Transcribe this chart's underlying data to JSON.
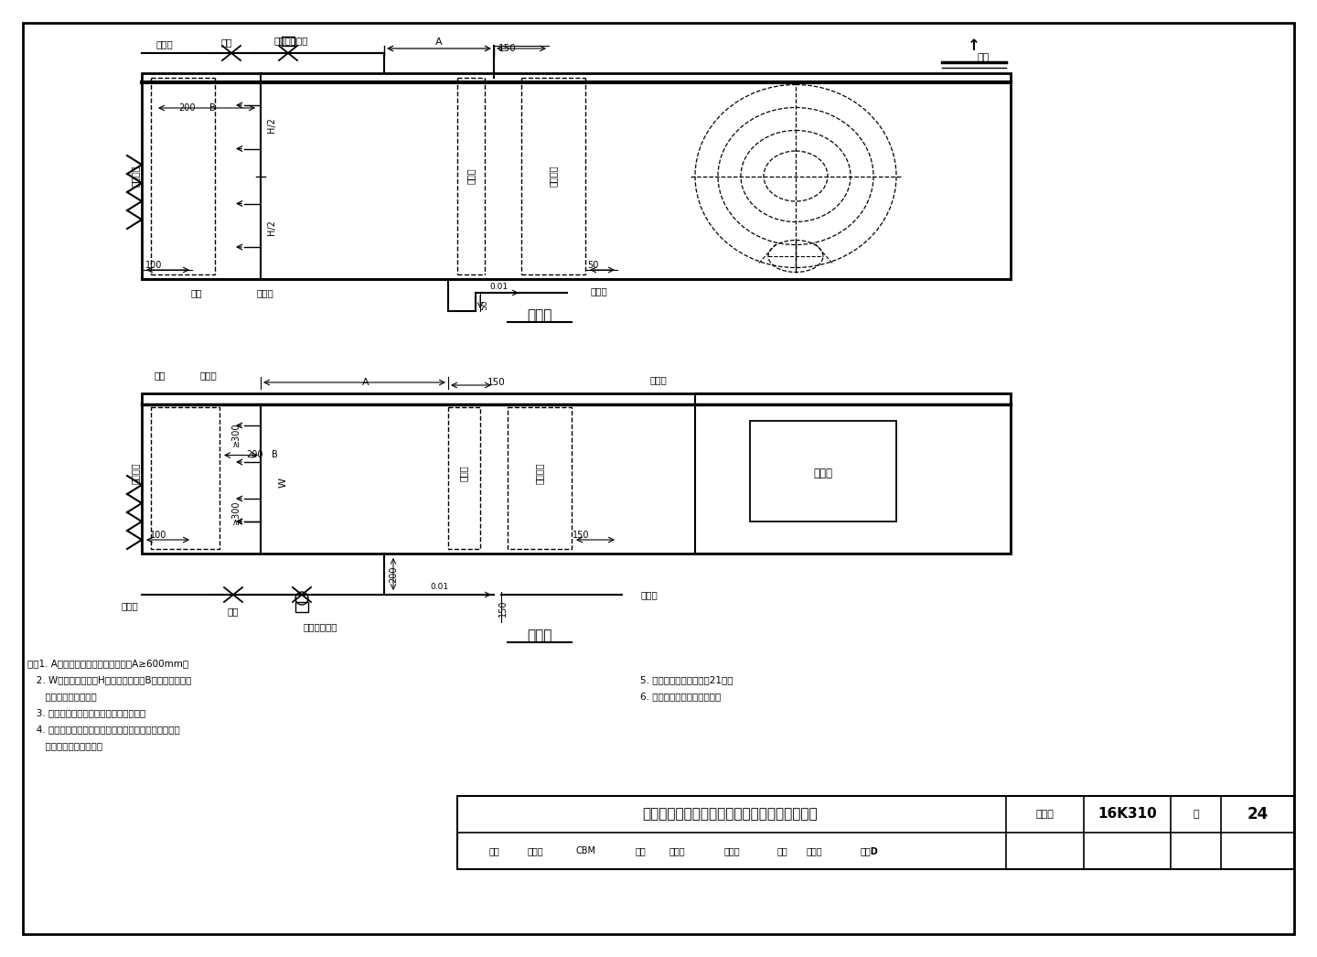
{
  "page_bg": "#ffffff",
  "line_color": "#000000",
  "main_title": "高压喷雾加湿器空调机组内安装示意图（逆喷）",
  "fig_number_label": "图集号",
  "fig_number": "16K310",
  "page_label": "页",
  "page_number": "24",
  "section1_title": "立面图",
  "section2_title": "平面图",
  "notes_line1": "注：1. A为吸收距离，高压喷雾加湿器A≥600mm。",
  "notes_line2": "   2. W为空调箱宽度，H为空调箱高度；B的数值取决于不",
  "notes_line3": "      同厂家喷嘴的规格。",
  "notes_line4": "   3. 水封高度值应根据具体风机风压复核。",
  "notes_line5": "   4. 排水管接至排水明沟或机房地漏，具体做法由设计人",
  "notes_line6": "      员根据实际情况确定。",
  "notes_r1": "5. 安装要求详见本图集第21页。",
  "notes_r2": "6. 图中所注尺寸均为最小值。"
}
